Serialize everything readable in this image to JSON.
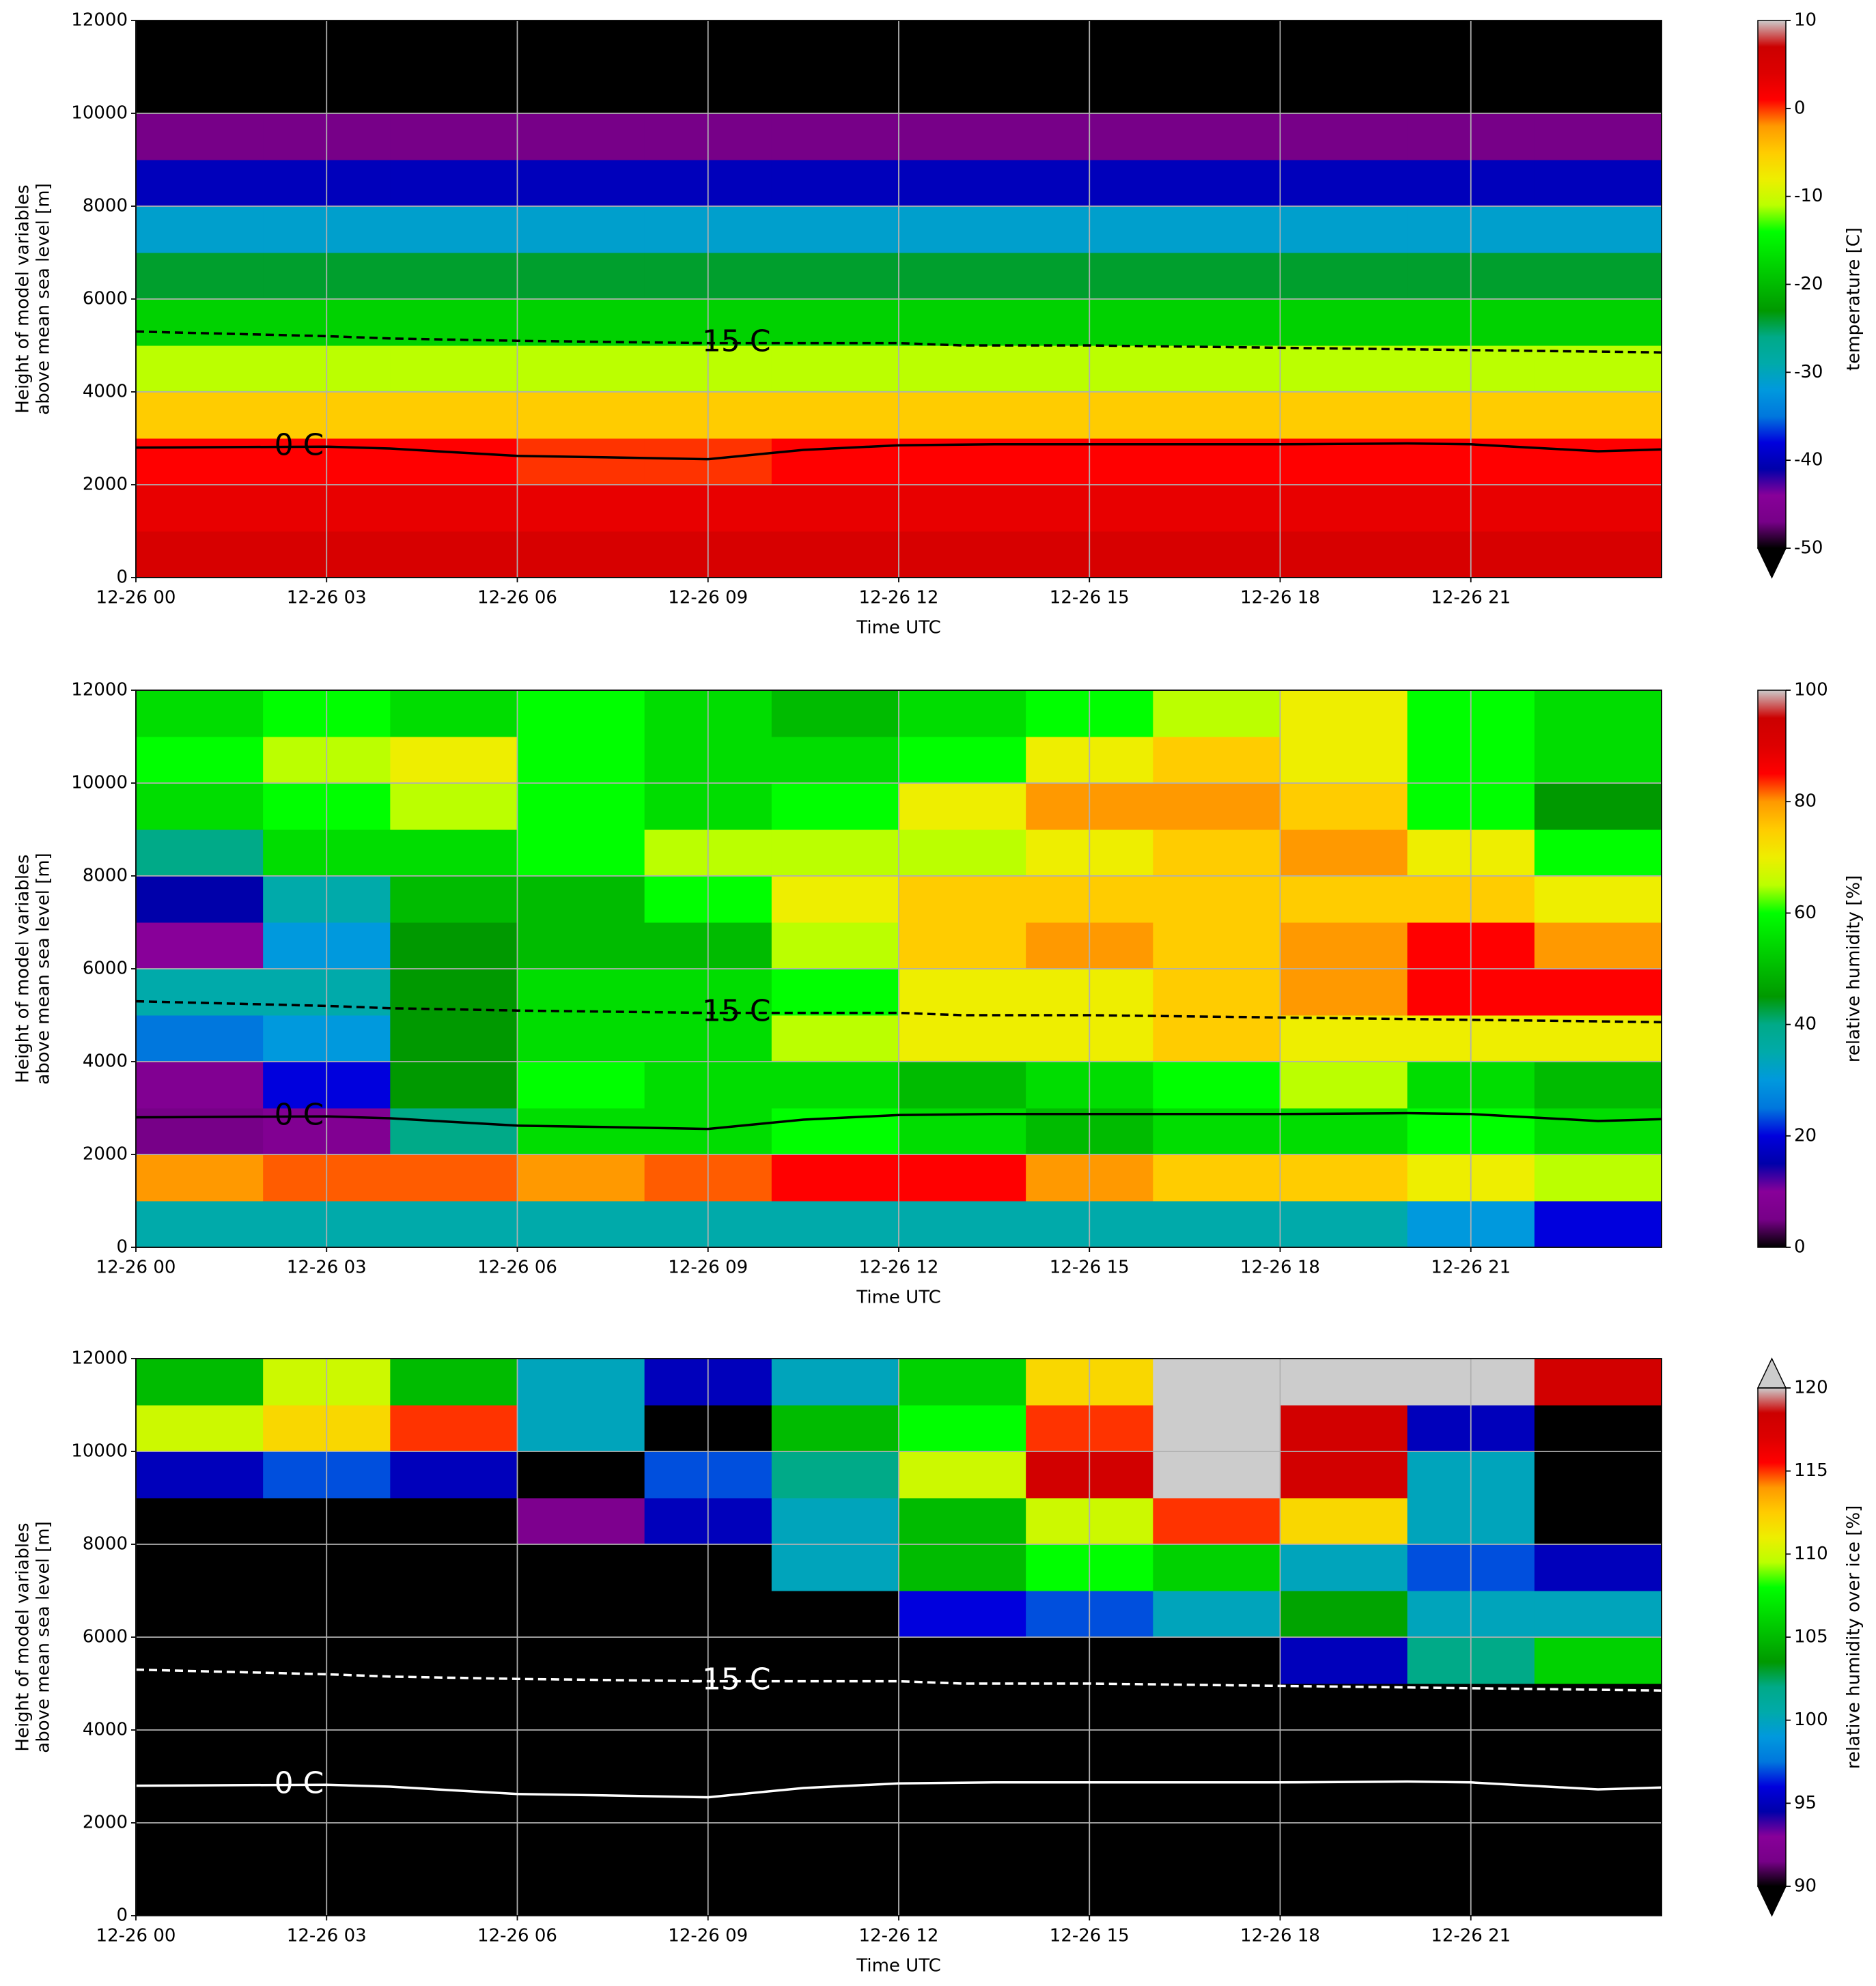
{
  "chart_data": [
    {
      "type": "heatmap",
      "xlabel": "Time UTC",
      "ylabel": [
        "Height of model variables",
        "above mean sea level [m]"
      ],
      "colorbar_label": "temperature [C]",
      "xlim": [
        0,
        24
      ],
      "xticks": [
        {
          "value": 0,
          "label": "12-26 00"
        },
        {
          "value": 3,
          "label": "12-26 03"
        },
        {
          "value": 6,
          "label": "12-26 06"
        },
        {
          "value": 9,
          "label": "12-26 09"
        },
        {
          "value": 12,
          "label": "12-26 12"
        },
        {
          "value": 15,
          "label": "12-26 15"
        },
        {
          "value": 18,
          "label": "12-26 18"
        },
        {
          "value": 21,
          "label": "12-26 21"
        }
      ],
      "ylim": [
        0,
        12000
      ],
      "yticks": [
        0,
        2000,
        4000,
        6000,
        8000,
        10000,
        12000
      ],
      "grid": true,
      "x_bins": [
        0,
        2,
        4,
        6,
        8,
        10,
        12,
        14,
        16,
        18,
        20,
        22,
        24
      ],
      "y_bins": [
        0,
        1000,
        2000,
        3000,
        4000,
        5000,
        6000,
        7000,
        8000,
        9000,
        10000,
        11000,
        12000
      ],
      "z": [
        [
          5,
          5,
          5,
          5,
          5,
          5,
          5,
          5,
          5,
          5,
          5,
          5
        ],
        [
          3,
          3,
          3,
          3,
          3,
          3,
          3,
          3,
          3,
          3,
          3,
          3
        ],
        [
          1,
          1,
          1,
          0,
          0,
          1,
          1,
          1,
          1,
          1,
          1,
          1
        ],
        [
          -5,
          -5,
          -5,
          -5,
          -5,
          -5,
          -5,
          -5,
          -5,
          -5,
          -5,
          -5
        ],
        [
          -11,
          -11,
          -11,
          -11,
          -11,
          -11,
          -11,
          -11,
          -11,
          -11,
          -11,
          -11
        ],
        [
          -18,
          -18,
          -18,
          -18,
          -18,
          -18,
          -18,
          -18,
          -18,
          -18,
          -18,
          -18
        ],
        [
          -24,
          -24,
          -24,
          -24,
          -24,
          -24,
          -24,
          -24,
          -24,
          -24,
          -24,
          -24
        ],
        [
          -31,
          -31,
          -31,
          -31,
          -31,
          -31,
          -31,
          -31,
          -31,
          -31,
          -31,
          -31
        ],
        [
          -40,
          -40,
          -40,
          -40,
          -40,
          -40,
          -40,
          -40,
          -40,
          -40,
          -40,
          -40
        ],
        [
          -47,
          -47,
          -47,
          -47,
          -47,
          -47,
          -47,
          -47,
          -47,
          -47,
          -47,
          -47
        ],
        [
          -55,
          -55,
          -55,
          -55,
          -55,
          -55,
          -55,
          -55,
          -55,
          -55,
          -55,
          -55
        ],
        [
          -55,
          -55,
          -55,
          -55,
          -55,
          -55,
          -55,
          -55,
          -55,
          -55,
          -55,
          -55
        ]
      ],
      "colormap": [
        "#000000",
        "#770088",
        "#880099",
        "#0000aa",
        "#0000dd",
        "#0077dd",
        "#0099dd",
        "#00aaaa",
        "#00aa88",
        "#009900",
        "#00bb00",
        "#00dd00",
        "#00ff00",
        "#bbff00",
        "#eeee00",
        "#ffcc00",
        "#ff9900",
        "#ff0000",
        "#dd0000",
        "#cc0000",
        "#cccccc"
      ],
      "clim": [
        -50,
        10
      ],
      "cticks": [
        -50,
        -40,
        -30,
        -20,
        -10,
        0,
        10
      ],
      "colorbar_extend": "min",
      "under_color": "#000000",
      "contours": [
        {
          "label": "0 C",
          "style": "solid",
          "color": "#000000",
          "x": [
            0,
            3,
            4,
            6,
            7,
            9,
            10.5,
            12,
            13.5,
            15,
            18,
            20,
            21,
            23,
            24
          ],
          "y": [
            2800,
            2820,
            2780,
            2620,
            2600,
            2550,
            2750,
            2850,
            2870,
            2870,
            2870,
            2890,
            2870,
            2720,
            2760
          ]
        },
        {
          "label": "-15 C",
          "style": "dashed",
          "color": "#000000",
          "x": [
            0,
            3,
            4,
            6,
            9,
            12,
            13,
            15,
            18,
            21,
            24
          ],
          "y": [
            5300,
            5200,
            5150,
            5100,
            5050,
            5050,
            5000,
            5000,
            4950,
            4900,
            4850
          ]
        }
      ]
    },
    {
      "type": "heatmap",
      "xlabel": "Time UTC",
      "ylabel": [
        "Height of model variables",
        "above mean sea level [m]"
      ],
      "colorbar_label": "relative humidity [%]",
      "xlim": [
        0,
        24
      ],
      "xticks": [
        {
          "value": 0,
          "label": "12-26 00"
        },
        {
          "value": 3,
          "label": "12-26 03"
        },
        {
          "value": 6,
          "label": "12-26 06"
        },
        {
          "value": 9,
          "label": "12-26 09"
        },
        {
          "value": 12,
          "label": "12-26 12"
        },
        {
          "value": 15,
          "label": "12-26 15"
        },
        {
          "value": 18,
          "label": "12-26 18"
        },
        {
          "value": 21,
          "label": "12-26 21"
        }
      ],
      "ylim": [
        0,
        12000
      ],
      "yticks": [
        0,
        2000,
        4000,
        6000,
        8000,
        10000,
        12000
      ],
      "grid": true,
      "x_bins": [
        0,
        2,
        4,
        6,
        8,
        10,
        12,
        14,
        16,
        18,
        20,
        22,
        24
      ],
      "y_bins": [
        0,
        1000,
        2000,
        3000,
        4000,
        5000,
        6000,
        7000,
        8000,
        9000,
        10000,
        11000,
        12000
      ],
      "z": [
        [
          35,
          35,
          35,
          35,
          35,
          35,
          35,
          35,
          35,
          35,
          30,
          20
        ],
        [
          80,
          82,
          82,
          80,
          82,
          85,
          85,
          80,
          75,
          75,
          70,
          65
        ],
        [
          5,
          8,
          40,
          55,
          55,
          60,
          55,
          50,
          55,
          55,
          60,
          55
        ],
        [
          8,
          20,
          45,
          60,
          55,
          55,
          50,
          55,
          60,
          65,
          55,
          50
        ],
        [
          25,
          30,
          45,
          55,
          55,
          65,
          70,
          70,
          75,
          70,
          70,
          70
        ],
        [
          35,
          35,
          45,
          55,
          55,
          60,
          70,
          70,
          75,
          80,
          85,
          85
        ],
        [
          10,
          30,
          45,
          50,
          50,
          65,
          75,
          80,
          75,
          80,
          85,
          80
        ],
        [
          15,
          35,
          50,
          50,
          60,
          70,
          75,
          75,
          75,
          75,
          75,
          70
        ],
        [
          40,
          55,
          55,
          60,
          65,
          65,
          65,
          70,
          75,
          80,
          70,
          60
        ],
        [
          55,
          60,
          65,
          60,
          55,
          60,
          70,
          80,
          80,
          75,
          60,
          45
        ],
        [
          60,
          65,
          70,
          60,
          55,
          55,
          60,
          70,
          75,
          70,
          60,
          55
        ],
        [
          55,
          60,
          55,
          60,
          55,
          50,
          55,
          60,
          65,
          70,
          60,
          55
        ]
      ],
      "colormap": [
        "#000000",
        "#770088",
        "#880099",
        "#0000aa",
        "#0000dd",
        "#0077dd",
        "#0099dd",
        "#00aaaa",
        "#00aa88",
        "#009900",
        "#00bb00",
        "#00dd00",
        "#00ff00",
        "#bbff00",
        "#eeee00",
        "#ffcc00",
        "#ff9900",
        "#ff0000",
        "#dd0000",
        "#cc0000",
        "#cccccc"
      ],
      "clim": [
        0,
        100
      ],
      "cticks": [
        0,
        20,
        40,
        60,
        80,
        100
      ],
      "contours": [
        {
          "label": "0 C",
          "style": "solid",
          "color": "#000000",
          "x": [
            0,
            3,
            4,
            6,
            7,
            9,
            10.5,
            12,
            13.5,
            15,
            18,
            20,
            21,
            23,
            24
          ],
          "y": [
            2800,
            2820,
            2780,
            2620,
            2600,
            2550,
            2750,
            2850,
            2870,
            2870,
            2870,
            2890,
            2870,
            2720,
            2760
          ]
        },
        {
          "label": "-15 C",
          "style": "dashed",
          "color": "#000000",
          "x": [
            0,
            3,
            4,
            6,
            9,
            12,
            13,
            15,
            18,
            21,
            24
          ],
          "y": [
            5300,
            5200,
            5150,
            5100,
            5050,
            5050,
            5000,
            5000,
            4950,
            4900,
            4850
          ]
        }
      ]
    },
    {
      "type": "heatmap",
      "xlabel": "Time UTC",
      "ylabel": [
        "Height of model variables",
        "above mean sea level [m]"
      ],
      "colorbar_label": "relative humidity over ice [%]",
      "xlim": [
        0,
        24
      ],
      "xticks": [
        {
          "value": 0,
          "label": "12-26 00"
        },
        {
          "value": 3,
          "label": "12-26 03"
        },
        {
          "value": 6,
          "label": "12-26 06"
        },
        {
          "value": 9,
          "label": "12-26 09"
        },
        {
          "value": 12,
          "label": "12-26 12"
        },
        {
          "value": 15,
          "label": "12-26 15"
        },
        {
          "value": 18,
          "label": "12-26 18"
        },
        {
          "value": 21,
          "label": "12-26 21"
        }
      ],
      "ylim": [
        0,
        12000
      ],
      "yticks": [
        0,
        2000,
        4000,
        6000,
        8000,
        10000,
        12000
      ],
      "grid": true,
      "x_bins": [
        0,
        2,
        4,
        6,
        8,
        10,
        12,
        14,
        16,
        18,
        20,
        22,
        24
      ],
      "y_bins": [
        0,
        1000,
        2000,
        3000,
        4000,
        5000,
        6000,
        7000,
        8000,
        9000,
        10000,
        11000,
        12000
      ],
      "z": [
        [
          80,
          80,
          80,
          80,
          80,
          80,
          80,
          80,
          80,
          80,
          80,
          80
        ],
        [
          80,
          80,
          80,
          80,
          80,
          80,
          80,
          80,
          80,
          80,
          80,
          80
        ],
        [
          80,
          80,
          80,
          80,
          80,
          80,
          80,
          80,
          80,
          80,
          80,
          80
        ],
        [
          80,
          80,
          80,
          80,
          80,
          80,
          80,
          80,
          80,
          80,
          80,
          80
        ],
        [
          80,
          80,
          80,
          80,
          80,
          80,
          80,
          80,
          80,
          80,
          80,
          80
        ],
        [
          80,
          80,
          80,
          80,
          80,
          80,
          80,
          80,
          80,
          95,
          102,
          106
        ],
        [
          80,
          80,
          80,
          80,
          80,
          80,
          96,
          97,
          100,
          104,
          100,
          100
        ],
        [
          80,
          80,
          80,
          80,
          85,
          100,
          105,
          108,
          106,
          100,
          97,
          95
        ],
        [
          80,
          80,
          85,
          92,
          95,
          100,
          105,
          110,
          115,
          112,
          100,
          85
        ],
        [
          95,
          97,
          95,
          90,
          97,
          102,
          110,
          118,
          122,
          118,
          100,
          85
        ],
        [
          110,
          112,
          115,
          100,
          90,
          105,
          108,
          115,
          125,
          118,
          95,
          85
        ],
        [
          105,
          110,
          105,
          100,
          95,
          100,
          106,
          112,
          125,
          125,
          125,
          118
        ]
      ],
      "colormap": [
        "#000000",
        "#770088",
        "#880099",
        "#0000aa",
        "#0000dd",
        "#0077dd",
        "#0099dd",
        "#00aaaa",
        "#00aa88",
        "#009900",
        "#00bb00",
        "#00dd00",
        "#00ff00",
        "#bbff00",
        "#eeee00",
        "#ffcc00",
        "#ff9900",
        "#ff0000",
        "#dd0000",
        "#cc0000",
        "#cccccc"
      ],
      "clim": [
        90,
        120
      ],
      "cticks": [
        90,
        95,
        100,
        105,
        110,
        115,
        120
      ],
      "colorbar_extend": "both",
      "under_color": "#000000",
      "over_color": "#cccccc",
      "contours": [
        {
          "label": "0 C",
          "style": "solid",
          "color": "#ffffff",
          "x": [
            0,
            3,
            4,
            6,
            7,
            9,
            10.5,
            12,
            13.5,
            15,
            18,
            20,
            21,
            23,
            24
          ],
          "y": [
            2800,
            2820,
            2780,
            2620,
            2600,
            2550,
            2750,
            2850,
            2870,
            2870,
            2870,
            2890,
            2870,
            2720,
            2760
          ]
        },
        {
          "label": "-15 C",
          "style": "dashed",
          "color": "#ffffff",
          "x": [
            0,
            3,
            4,
            6,
            9,
            12,
            13,
            15,
            18,
            21,
            24
          ],
          "y": [
            5300,
            5200,
            5150,
            5100,
            5050,
            5050,
            5000,
            5000,
            4950,
            4900,
            4850
          ]
        }
      ]
    }
  ]
}
